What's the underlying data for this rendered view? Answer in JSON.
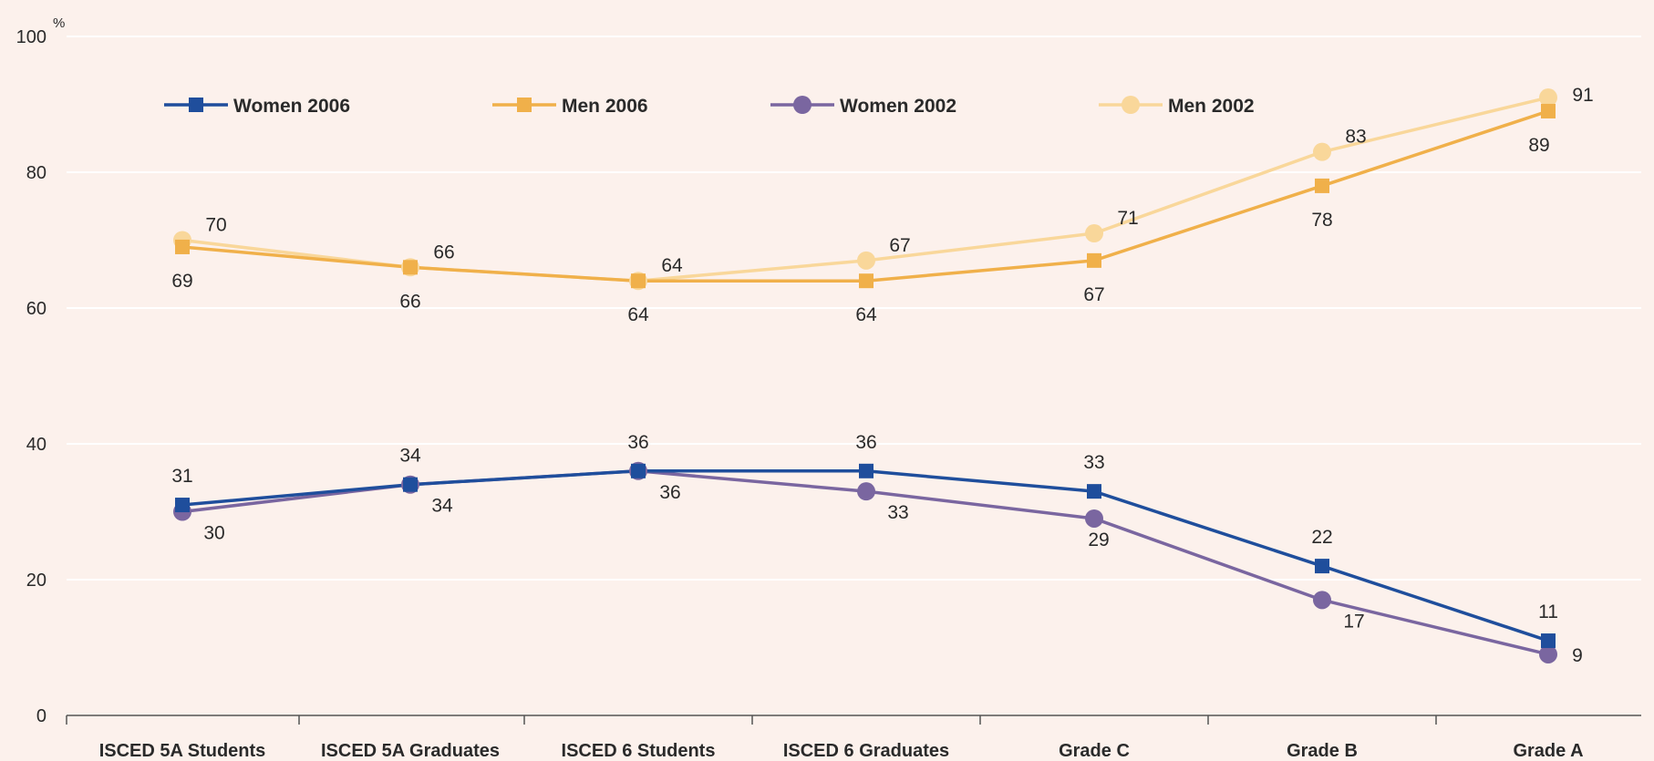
{
  "chart_data": {
    "type": "line",
    "ylabel": "%",
    "ylim": [
      0,
      100
    ],
    "yticks": [
      "0",
      "20",
      "40",
      "60",
      "80",
      "100"
    ],
    "grid": true,
    "legend_position": "top",
    "categories": [
      "ISCED 5A Students",
      "ISCED 5A Graduates",
      "ISCED 6 Students",
      "ISCED 6 Graduates",
      "Grade C",
      "Grade B",
      "Grade A"
    ],
    "series": [
      {
        "name": "Women 2006",
        "values": [
          31,
          34,
          36,
          36,
          33,
          22,
          11
        ],
        "color": "#1f4e9c",
        "marker": "square"
      },
      {
        "name": "Men 2006",
        "values": [
          69,
          66,
          64,
          64,
          67,
          78,
          89
        ],
        "color": "#f0b04a",
        "marker": "square"
      },
      {
        "name": "Women 2002",
        "values": [
          30,
          34,
          36,
          33,
          29,
          17,
          9
        ],
        "color": "#7a66a0",
        "marker": "circle"
      },
      {
        "name": "Men 2002",
        "values": [
          70,
          66,
          64,
          67,
          71,
          83,
          91
        ],
        "color": "#f9d79a",
        "marker": "circle"
      }
    ]
  }
}
